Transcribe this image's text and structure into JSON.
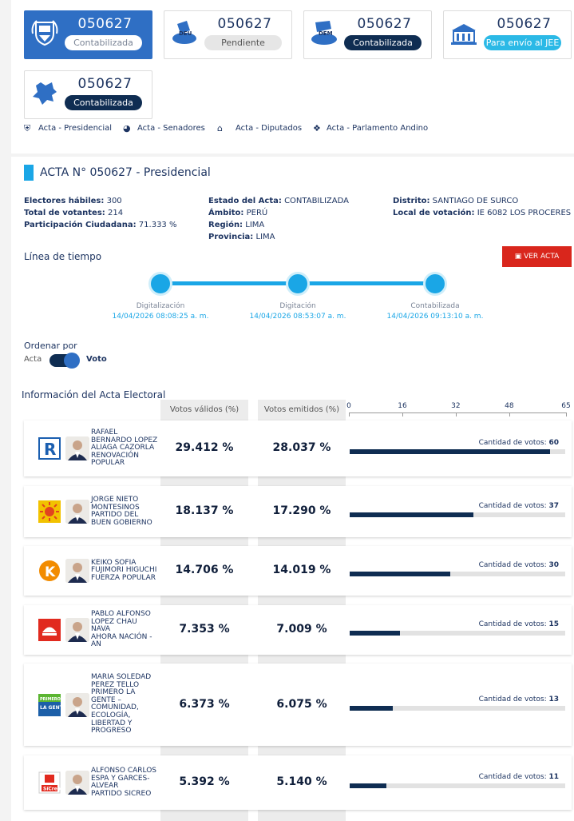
{
  "cards": [
    {
      "number": "050627",
      "status": "Contabilizada",
      "style": "white",
      "logo": "peru-shield-icon"
    },
    {
      "number": "050627",
      "status": "Pendiente",
      "style": "grey",
      "logo": "deu-logo-icon",
      "logo_text": "DEU"
    },
    {
      "number": "050627",
      "status": "Contabilizada",
      "style": "navy",
      "logo": "dem-logo-icon",
      "logo_text": "DEM"
    },
    {
      "number": "050627",
      "status": "Para envío al JEE",
      "style": "cyan",
      "logo": "jee-building-icon"
    },
    {
      "number": "050627",
      "status": "Contabilizada",
      "style": "navy",
      "logo": "parlamento-andino-icon"
    }
  ],
  "links": [
    "Acta - Presidencial",
    "Acta - Senadores",
    "Acta - Diputados",
    "Acta - Parlamento Andino"
  ],
  "acta": {
    "title": "ACTA N° 050627 - Presidencial",
    "electores_label": "Electores hábiles:",
    "electores": "300",
    "votantes_label": "Total de votantes:",
    "votantes": "214",
    "participacion_label": "Participación Ciudadana:",
    "participacion": "71.333 %",
    "estado_label": "Estado del Acta:",
    "estado": "CONTABILIZADA",
    "ambito_label": "Ámbito:",
    "ambito": "PERÚ",
    "region_label": "Región:",
    "region": "LIMA",
    "provincia_label": "Provincia:",
    "provincia": "LIMA",
    "distrito_label": "Distrito:",
    "distrito": "SANTIAGO DE SURCO",
    "local_label": "Local de votación:",
    "local": "IE 6082 LOS PROCERES"
  },
  "timeline": {
    "title": "Línea de tiempo",
    "ver_acta": "VER ACTA",
    "steps": [
      {
        "label": "Digitalización",
        "date": "14/04/2026 08:08:25 a. m."
      },
      {
        "label": "Digitación",
        "date": "14/04/2026 08:53:07 a. m."
      },
      {
        "label": "Contabilizada",
        "date": "14/04/2026 09:13:10 a. m."
      }
    ]
  },
  "sort": {
    "title": "Ordenar por",
    "left": "Acta",
    "right": "Voto"
  },
  "results": {
    "title": "Información del Acta Electoral",
    "col_validos": "Votos válidos (%)",
    "col_emitidos": "Votos emitidos (%)",
    "cantidad_label": "Cantidad de votos:",
    "axis_ticks": [
      "0",
      "16",
      "32",
      "48",
      "65"
    ],
    "axis_max": 65,
    "rows": [
      {
        "name": "RAFAEL BERNARDO LOPEZ ALIAGA CAZORLA",
        "party": "RENOVACIÓN POPULAR",
        "validos": "29.412 %",
        "emitidos": "28.037 %",
        "votes": 60,
        "votes_label": "60",
        "logo": "renovacion-popular-logo"
      },
      {
        "name": "JORGE NIETO MONTESINOS",
        "party": "PARTIDO DEL BUEN GOBIERNO",
        "validos": "18.137 %",
        "emitidos": "17.290 %",
        "votes": 37,
        "votes_label": "37",
        "logo": "buen-gobierno-sun-logo"
      },
      {
        "name": "KEIKO SOFIA FUJIMORI HIGUCHI",
        "party": "FUERZA POPULAR",
        "validos": "14.706 %",
        "emitidos": "14.019 %",
        "votes": 30,
        "votes_label": "30",
        "logo": "fuerza-popular-k-logo"
      },
      {
        "name": "PABLO ALFONSO LOPEZ CHAU NAVA",
        "party": "AHORA NACIÓN - AN",
        "validos": "7.353 %",
        "emitidos": "7.009 %",
        "votes": 15,
        "votes_label": "15",
        "logo": "ahora-nacion-logo"
      },
      {
        "name": "MARIA SOLEDAD PEREZ TELLO",
        "party": "PRIMERO LA GENTE – COMUNIDAD, ECOLOGÍA, LIBERTAD Y PROGRESO",
        "validos": "6.373 %",
        "emitidos": "6.075 %",
        "votes": 13,
        "votes_label": "13",
        "logo": "primero-la-gente-logo",
        "logo_text": "PRIMERO LA GENTE"
      },
      {
        "name": "ALFONSO CARLOS ESPA Y GARCES-ALVEAR",
        "party": "PARTIDO SICREO",
        "validos": "5.392 %",
        "emitidos": "5.140 %",
        "votes": 11,
        "votes_label": "11",
        "logo": "sicreo-logo",
        "logo_text": "SíCreo"
      }
    ]
  },
  "colors": {
    "navy": "#0f2d52",
    "blue": "#2f6fc4",
    "cyan": "#1aa6e6",
    "red": "#d9261c"
  }
}
